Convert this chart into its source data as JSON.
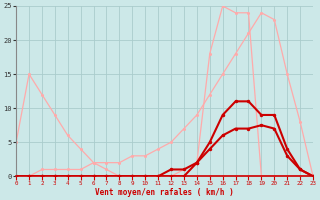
{
  "x": [
    0,
    1,
    2,
    3,
    4,
    5,
    6,
    7,
    8,
    9,
    10,
    11,
    12,
    13,
    14,
    15,
    16,
    17,
    18,
    19,
    20,
    21,
    22,
    23
  ],
  "line_pink1_y": [
    5,
    15,
    12,
    9,
    6,
    4,
    2,
    1,
    0,
    0,
    0,
    0,
    0,
    0,
    0,
    0,
    0,
    0,
    0,
    0,
    0,
    0,
    0,
    0
  ],
  "line_pink2_y": [
    0,
    0,
    1,
    1,
    1,
    1,
    2,
    2,
    2,
    3,
    3,
    4,
    5,
    7,
    9,
    12,
    15,
    18,
    21,
    24,
    23,
    15,
    8,
    0
  ],
  "line_pink3_y": [
    0,
    0,
    0,
    0,
    0,
    0,
    0,
    0,
    0,
    0,
    0,
    0,
    0,
    1,
    2,
    18,
    25,
    24,
    24,
    0,
    0,
    0,
    0,
    0
  ],
  "line_red1_y": [
    0,
    0,
    0,
    0,
    0,
    0,
    0,
    0,
    0,
    0,
    0,
    0,
    1,
    1,
    2,
    4,
    6,
    7,
    7,
    7.5,
    7,
    3,
    1,
    0
  ],
  "line_red2_y": [
    0,
    0,
    0,
    0,
    0,
    0,
    0,
    0,
    0,
    0,
    0,
    0,
    0,
    0,
    2,
    5,
    9,
    11,
    11,
    9,
    9,
    4,
    1,
    0
  ],
  "bg_color": "#cce8e8",
  "grid_color": "#aacccc",
  "line_pink_color": "#ffaaaa",
  "line_red_color": "#cc0000",
  "xlabel": "Vent moyen/en rafales ( km/h )",
  "ylim": [
    0,
    25
  ],
  "xlim": [
    0,
    23
  ]
}
